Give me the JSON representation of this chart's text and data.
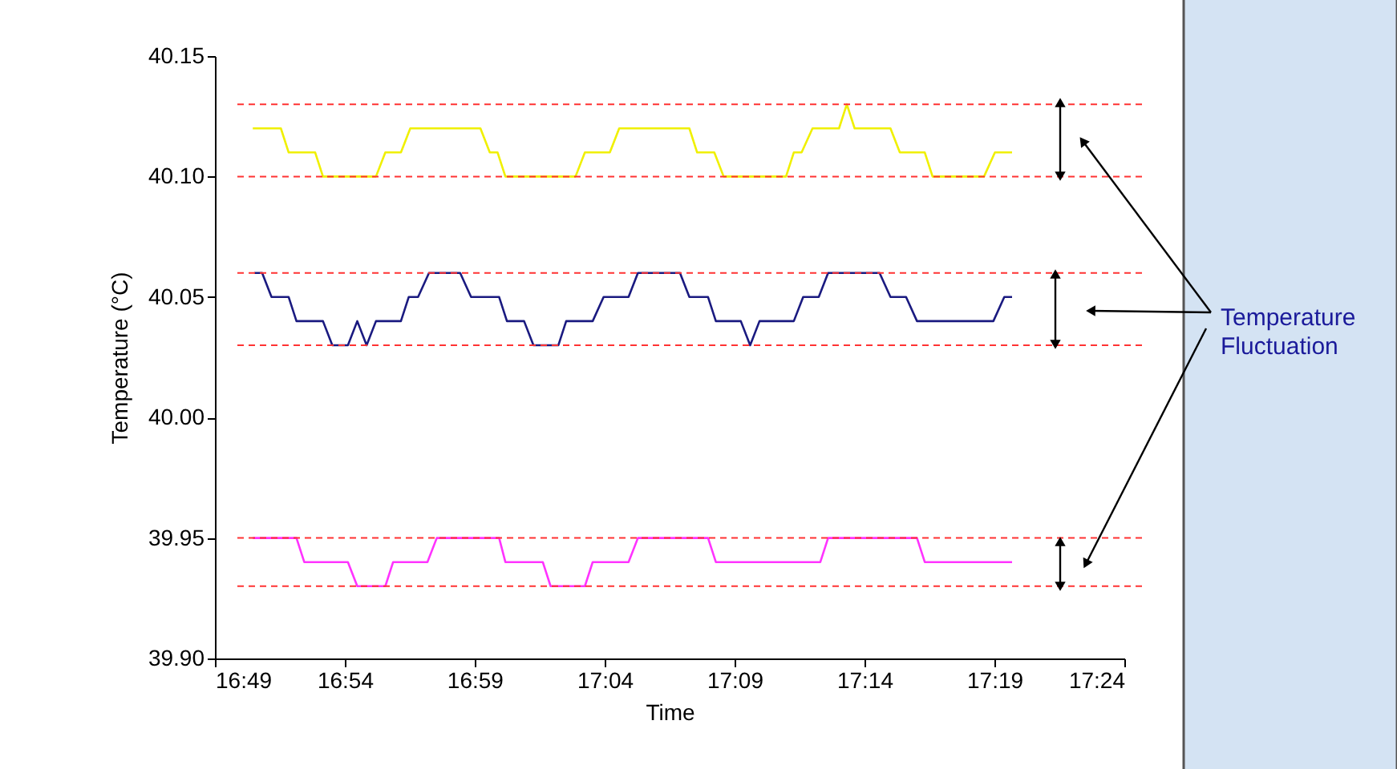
{
  "chart_data": {
    "type": "line",
    "xlabel": "Time",
    "ylabel": "Temperature (°C)",
    "xlim": [
      16.8167,
      17.4
    ],
    "xticks": [
      {
        "value": 16.8167,
        "label": "16:49"
      },
      {
        "value": 16.9,
        "label": "16:54"
      },
      {
        "value": 16.9833,
        "label": "16:59"
      },
      {
        "value": 17.0667,
        "label": "17:04"
      },
      {
        "value": 17.15,
        "label": "17:09"
      },
      {
        "value": 17.2333,
        "label": "17:14"
      },
      {
        "value": 17.3167,
        "label": "17:19"
      },
      {
        "value": 17.4,
        "label": "17:24"
      }
    ],
    "ylim": [
      39.9,
      40.15
    ],
    "yticks": [
      {
        "value": 39.9,
        "label": "39.90"
      },
      39.95,
      {
        "value": 40.0,
        "label": "40.00"
      },
      40.05,
      {
        "value": 40.1,
        "label": "40.10"
      },
      40.15
    ],
    "grid": false,
    "legend": false,
    "marker": "none",
    "line_style": "solid",
    "series": [
      {
        "color": "#f0f000",
        "x": [
          16.841,
          16.859,
          16.864,
          16.881,
          16.886,
          16.92,
          16.926,
          16.936,
          16.942,
          16.987,
          16.993,
          16.998,
          17.003,
          17.048,
          17.054,
          17.07,
          17.076,
          17.121,
          17.126,
          17.137,
          17.143,
          17.183,
          17.188,
          17.193,
          17.2,
          17.217,
          17.222,
          17.227,
          17.25,
          17.256,
          17.272,
          17.277,
          17.31,
          17.317,
          17.328
        ],
        "values": [
          40.12,
          40.12,
          40.11,
          40.11,
          40.1,
          40.1,
          40.11,
          40.11,
          40.12,
          40.12,
          40.11,
          40.11,
          40.1,
          40.1,
          40.11,
          40.11,
          40.12,
          40.12,
          40.11,
          40.11,
          40.1,
          40.1,
          40.11,
          40.11,
          40.12,
          40.12,
          40.13,
          40.12,
          40.12,
          40.11,
          40.11,
          40.1,
          40.1,
          40.11,
          40.11
        ]
      },
      {
        "color": "#1a1a80",
        "x": [
          16.842,
          16.847,
          16.853,
          16.864,
          16.869,
          16.886,
          16.892,
          16.902,
          16.908,
          16.914,
          16.92,
          16.936,
          16.941,
          16.947,
          16.954,
          16.974,
          16.981,
          16.999,
          17.004,
          17.015,
          17.021,
          17.037,
          17.042,
          17.059,
          17.066,
          17.082,
          17.088,
          17.115,
          17.121,
          17.133,
          17.138,
          17.154,
          17.16,
          17.166,
          17.188,
          17.194,
          17.204,
          17.21,
          17.243,
          17.25,
          17.26,
          17.267,
          17.316,
          17.323,
          17.328
        ],
        "values": [
          40.06,
          40.06,
          40.05,
          40.05,
          40.04,
          40.04,
          40.03,
          40.03,
          40.04,
          40.03,
          40.04,
          40.04,
          40.05,
          40.05,
          40.06,
          40.06,
          40.05,
          40.05,
          40.04,
          40.04,
          40.03,
          40.03,
          40.04,
          40.04,
          40.05,
          40.05,
          40.06,
          40.06,
          40.05,
          40.05,
          40.04,
          40.04,
          40.03,
          40.04,
          40.04,
          40.05,
          40.05,
          40.06,
          40.06,
          40.05,
          40.05,
          40.04,
          40.04,
          40.05,
          40.05
        ]
      },
      {
        "color": "#ff33ff",
        "x": [
          16.841,
          16.869,
          16.874,
          16.902,
          16.908,
          16.926,
          16.931,
          16.953,
          16.959,
          16.999,
          17.003,
          17.027,
          17.032,
          17.054,
          17.059,
          17.082,
          17.088,
          17.133,
          17.138,
          17.205,
          17.21,
          17.267,
          17.272,
          17.328
        ],
        "values": [
          39.95,
          39.95,
          39.94,
          39.94,
          39.93,
          39.93,
          39.94,
          39.94,
          39.95,
          39.95,
          39.94,
          39.94,
          39.93,
          39.93,
          39.94,
          39.94,
          39.95,
          39.95,
          39.94,
          39.94,
          39.95,
          39.95,
          39.94,
          39.94
        ]
      }
    ],
    "ref_lines": [
      {
        "axis": "y",
        "value": 40.13,
        "color": "#ff3333",
        "line_style": "dashed"
      },
      {
        "axis": "y",
        "value": 40.1,
        "color": "#ff3333",
        "line_style": "dashed"
      },
      {
        "axis": "y",
        "value": 40.06,
        "color": "#ff3333",
        "line_style": "dashed"
      },
      {
        "axis": "y",
        "value": 40.03,
        "color": "#ff3333",
        "line_style": "dashed"
      },
      {
        "axis": "y",
        "value": 39.95,
        "color": "#ff3333",
        "line_style": "dashed"
      },
      {
        "axis": "y",
        "value": 39.93,
        "color": "#ff3333",
        "line_style": "dashed"
      }
    ],
    "annotations": [
      "Temperature\nFluctuation"
    ]
  }
}
